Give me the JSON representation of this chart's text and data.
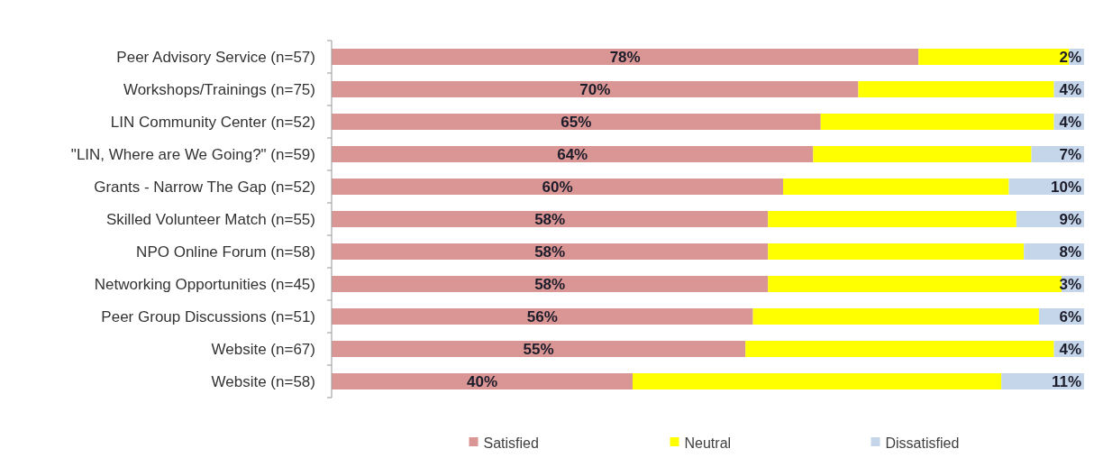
{
  "chart_data": {
    "type": "bar",
    "orientation": "horizontal",
    "stacked": true,
    "categories": [
      "Peer Advisory Service (n=57)",
      "Workshops/Trainings (n=75)",
      "LIN Community Center (n=52)",
      "\"LIN, Where are We Going?\" (n=59)",
      "Grants - Narrow The Gap (n=52)",
      "Skilled Volunteer Match (n=55)",
      "NPO Online Forum (n=58)",
      "Networking Opportunities (n=45)",
      "Peer Group Discussions (n=51)",
      "Website (n=67)",
      "Website (n=58)"
    ],
    "series": [
      {
        "name": "Satisfied",
        "color": "#d99694",
        "values": [
          78,
          70,
          65,
          64,
          60,
          58,
          58,
          58,
          56,
          55,
          40
        ],
        "value_labels": [
          "78%",
          "70%",
          "65%",
          "64%",
          "60%",
          "58%",
          "58%",
          "58%",
          "56%",
          "55%",
          "40%"
        ]
      },
      {
        "name": "Neutral",
        "color": "#ffff00",
        "values": [
          20,
          26,
          31,
          29,
          30,
          33,
          34,
          39,
          38,
          41,
          49
        ]
      },
      {
        "name": "Dissatisfied",
        "color": "#c6d6ea",
        "values": [
          2,
          4,
          4,
          7,
          10,
          9,
          8,
          3,
          6,
          4,
          11
        ],
        "value_labels": [
          "2%",
          "4%",
          "4%",
          "7%",
          "10%",
          "9%",
          "8%",
          "3%",
          "6%",
          "4%",
          "11%"
        ]
      }
    ],
    "xlim": [
      0,
      100
    ],
    "legend": "bottom"
  }
}
